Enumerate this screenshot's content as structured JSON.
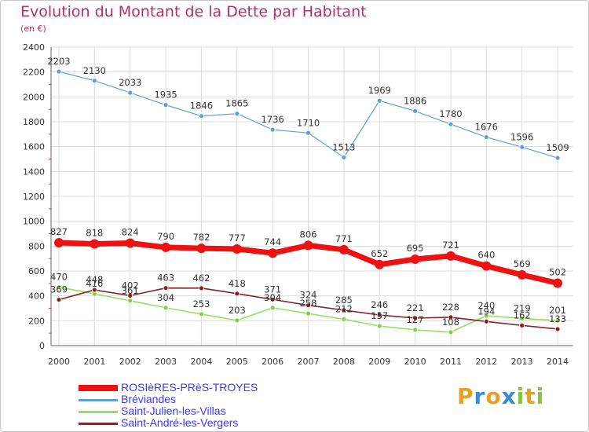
{
  "title": "Evolution du Montant de la Dette par Habitant",
  "subtitle": "(en €)",
  "brand": {
    "letters": [
      "P",
      "r",
      "o",
      "x",
      "i",
      "t",
      "i"
    ],
    "colors": [
      "#e8a020",
      "#3a8ad8",
      "#e8a020",
      "#3a8ad8",
      "#88c040",
      "#e8a020",
      "#88c040"
    ]
  },
  "chart_data": {
    "type": "line",
    "title": "Evolution du Montant de la Dette par Habitant",
    "ylabel": "(en €)",
    "xlabel": "",
    "ylim": [
      0,
      2400
    ],
    "yticks": [
      0,
      200,
      400,
      600,
      800,
      1000,
      1200,
      1400,
      1600,
      1800,
      2000,
      2200,
      2400
    ],
    "categories": [
      "2000",
      "2001",
      "2002",
      "2003",
      "2004",
      "2005",
      "2006",
      "2007",
      "2008",
      "2009",
      "2010",
      "2011",
      "2012",
      "2013",
      "2014"
    ],
    "grid": true,
    "legend": "bottom",
    "series": [
      {
        "name": "ROSIèRES-PRèS-TROYES",
        "color": "#ee1111",
        "values": [
          827,
          818,
          824,
          790,
          782,
          777,
          744,
          806,
          771,
          652,
          695,
          721,
          640,
          569,
          502
        ]
      },
      {
        "name": "Bréviandes",
        "color": "#5f9fd8",
        "values": [
          2203,
          2130,
          2033,
          1935,
          1846,
          1865,
          1736,
          1710,
          1513,
          1969,
          1886,
          1780,
          1676,
          1596,
          1509
        ]
      },
      {
        "name": "Saint-Julien-les-Villas",
        "color": "#99dd66",
        "values": [
          470,
          416,
          361,
          304,
          253,
          203,
          304,
          258,
          212,
          157,
          127,
          108,
          240,
          219,
          201
        ]
      },
      {
        "name": "Saint-André-les-Vergers",
        "color": "#7a2a2a",
        "values": [
          369,
          448,
          402,
          463,
          462,
          418,
          371,
          324,
          285,
          246,
          221,
          228,
          194,
          162,
          133
        ]
      }
    ]
  }
}
